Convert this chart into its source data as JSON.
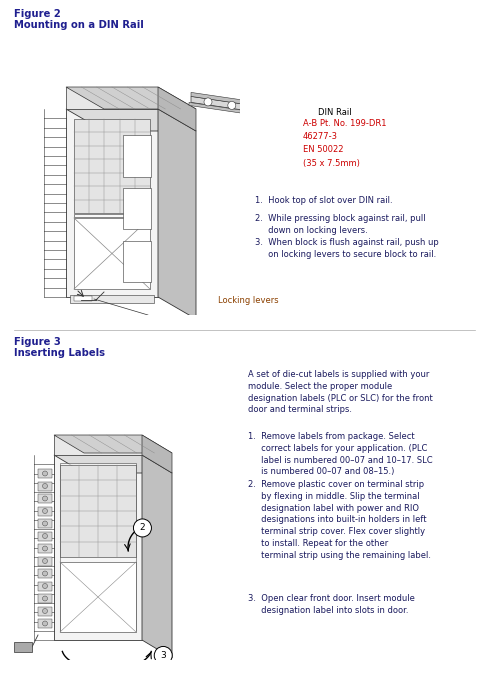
{
  "background_color": "#ffffff",
  "fig_width": 4.89,
  "fig_height": 6.79,
  "dpi": 100,
  "fig2_title_line1": "Figure 2",
  "fig2_title_line2": "Mounting on a DIN Rail",
  "fig3_title_line1": "Figure 3",
  "fig3_title_line2": "Inserting Labels",
  "din_rail_label": "DIN Rail",
  "din_rail_specs": "A-B Pt. No. 199-DR1\n46277-3\nEN 50022\n(35 x 7.5mm)",
  "locking_levers_label": "Locking levers",
  "steps_fig2": [
    "1.  Hook top of slot over DIN rail.",
    "2.  While pressing block against rail, pull\n     down on locking levers.",
    "3.  When block is flush against rail, push up\n     on locking levers to secure block to rail."
  ],
  "intro_fig3": "A set of die-cut labels is supplied with your\nmodule. Select the proper module\ndesignation labels (PLC or SLC) for the front\ndoor and terminal strips.",
  "steps_fig3": [
    "1.  Remove labels from package. Select\n     correct labels for your application. (PLC\n     label is numbered 00–07 and 10–17. SLC\n     is numbered 00–07 and 08–15.)",
    "2.  Remove plastic cover on terminal strip\n     by flexing in middle. Slip the terminal\n     designation label with power and RIO\n     designations into built-in holders in left\n     terminal strip cover. Flex cover slightly\n     to install. Repeat for the other\n     terminal strip using the remaining label.",
    "3.  Open clear front door. Insert module\n     designation label into slots in door."
  ],
  "title_color": "#1f1f8f",
  "text_color": "#1a1a5e",
  "spec_color": "#cc0000",
  "label_color": "#8b4000",
  "title_fontsize": 7.2,
  "body_fontsize": 6.0,
  "spec_fontsize": 6.0,
  "small_fontsize": 5.8
}
